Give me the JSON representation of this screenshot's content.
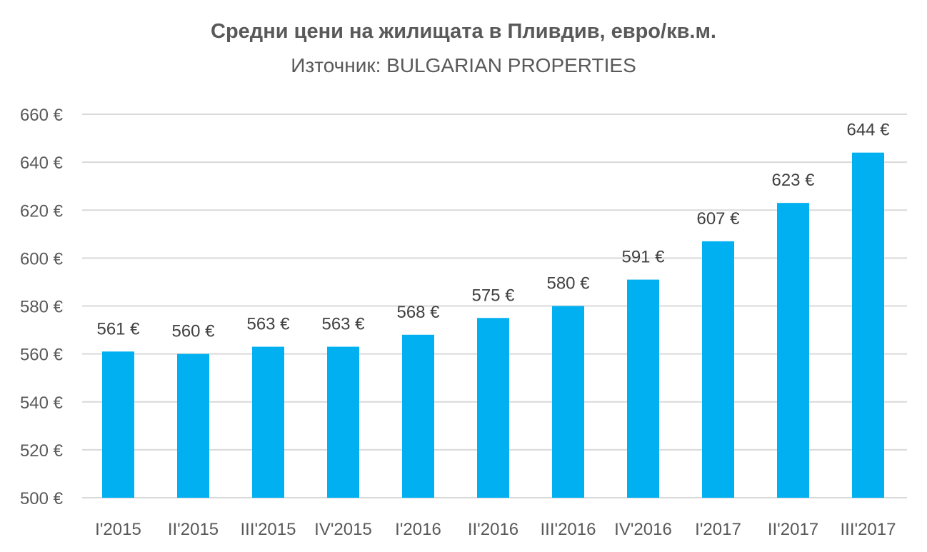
{
  "chart_data": {
    "type": "bar",
    "title": "Средни цени на жилищата в Пливдив, евро/кв.м.",
    "subtitle": "Източник: BULGARIAN PROPERTIES",
    "categories": [
      "I'2015",
      "II'2015",
      "III'2015",
      "IV'2015",
      "I'2016",
      "II'2016",
      "III'2016",
      "IV'2016",
      "I'2017",
      "II'2017",
      "III'2017"
    ],
    "values": [
      561,
      560,
      563,
      563,
      568,
      575,
      580,
      591,
      607,
      623,
      644
    ],
    "data_labels": [
      "561 €",
      "560 €",
      "563 €",
      "563 €",
      "568 €",
      "575 €",
      "580 €",
      "591 €",
      "607 €",
      "623 €",
      "644 €"
    ],
    "xlabel": "",
    "ylabel": "",
    "ylim": [
      500,
      660
    ],
    "yticks": [
      500,
      520,
      540,
      560,
      580,
      600,
      620,
      640,
      660
    ],
    "ytick_labels": [
      "500 €",
      "520 €",
      "540 €",
      "560 €",
      "580 €",
      "600 €",
      "620 €",
      "640 €",
      "660 €"
    ],
    "grid": true,
    "legend": "none",
    "colors": {
      "bar": "#00B0F0",
      "grid": "#D9D9D9",
      "text": "#595959"
    }
  }
}
